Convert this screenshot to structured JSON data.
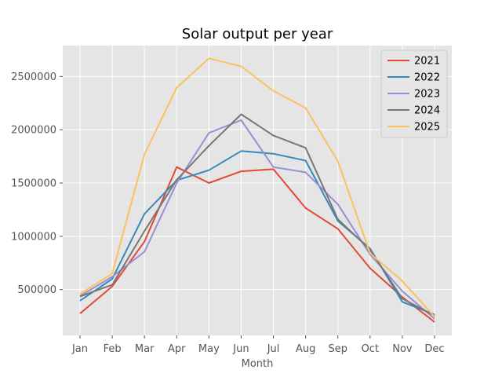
{
  "chart_data": {
    "type": "line",
    "title": "Solar output per year",
    "xlabel": "Month",
    "ylabel": "",
    "categories": [
      "Jan",
      "Feb",
      "Mar",
      "Apr",
      "May",
      "Jun",
      "Jul",
      "Aug",
      "Sep",
      "Oct",
      "Nov",
      "Dec"
    ],
    "ylim": [
      70000,
      2790000
    ],
    "yticks": [
      500000,
      1000000,
      1500000,
      2000000,
      2500000
    ],
    "ytick_labels": [
      "500000",
      "1000000",
      "1500000",
      "2000000",
      "2500000"
    ],
    "grid": true,
    "legend_position": "top-right",
    "series": [
      {
        "name": "2021",
        "color": "#E24A33",
        "values": [
          275000,
          530000,
          950000,
          1650000,
          1500000,
          1610000,
          1630000,
          1265000,
          1070000,
          700000,
          430000,
          195000
        ]
      },
      {
        "name": "2022",
        "color": "#348ABD",
        "values": [
          395000,
          600000,
          1210000,
          1525000,
          1620000,
          1800000,
          1775000,
          1710000,
          1145000,
          885000,
          385000,
          265000
        ]
      },
      {
        "name": "2023",
        "color": "#988ED5",
        "values": [
          440000,
          620000,
          855000,
          1500000,
          1970000,
          2090000,
          1650000,
          1600000,
          1300000,
          830000,
          485000,
          225000
        ]
      },
      {
        "name": "2024",
        "color": "#777777",
        "values": [
          435000,
          545000,
          1050000,
          1530000,
          1850000,
          2145000,
          1945000,
          1830000,
          1160000,
          875000,
          415000,
          255000
        ]
      },
      {
        "name": "2025",
        "color": "#FBC15E",
        "values": [
          460000,
          650000,
          1770000,
          2395000,
          2670000,
          2595000,
          2365000,
          2205000,
          1705000,
          840000,
          580000,
          245000
        ]
      }
    ]
  }
}
